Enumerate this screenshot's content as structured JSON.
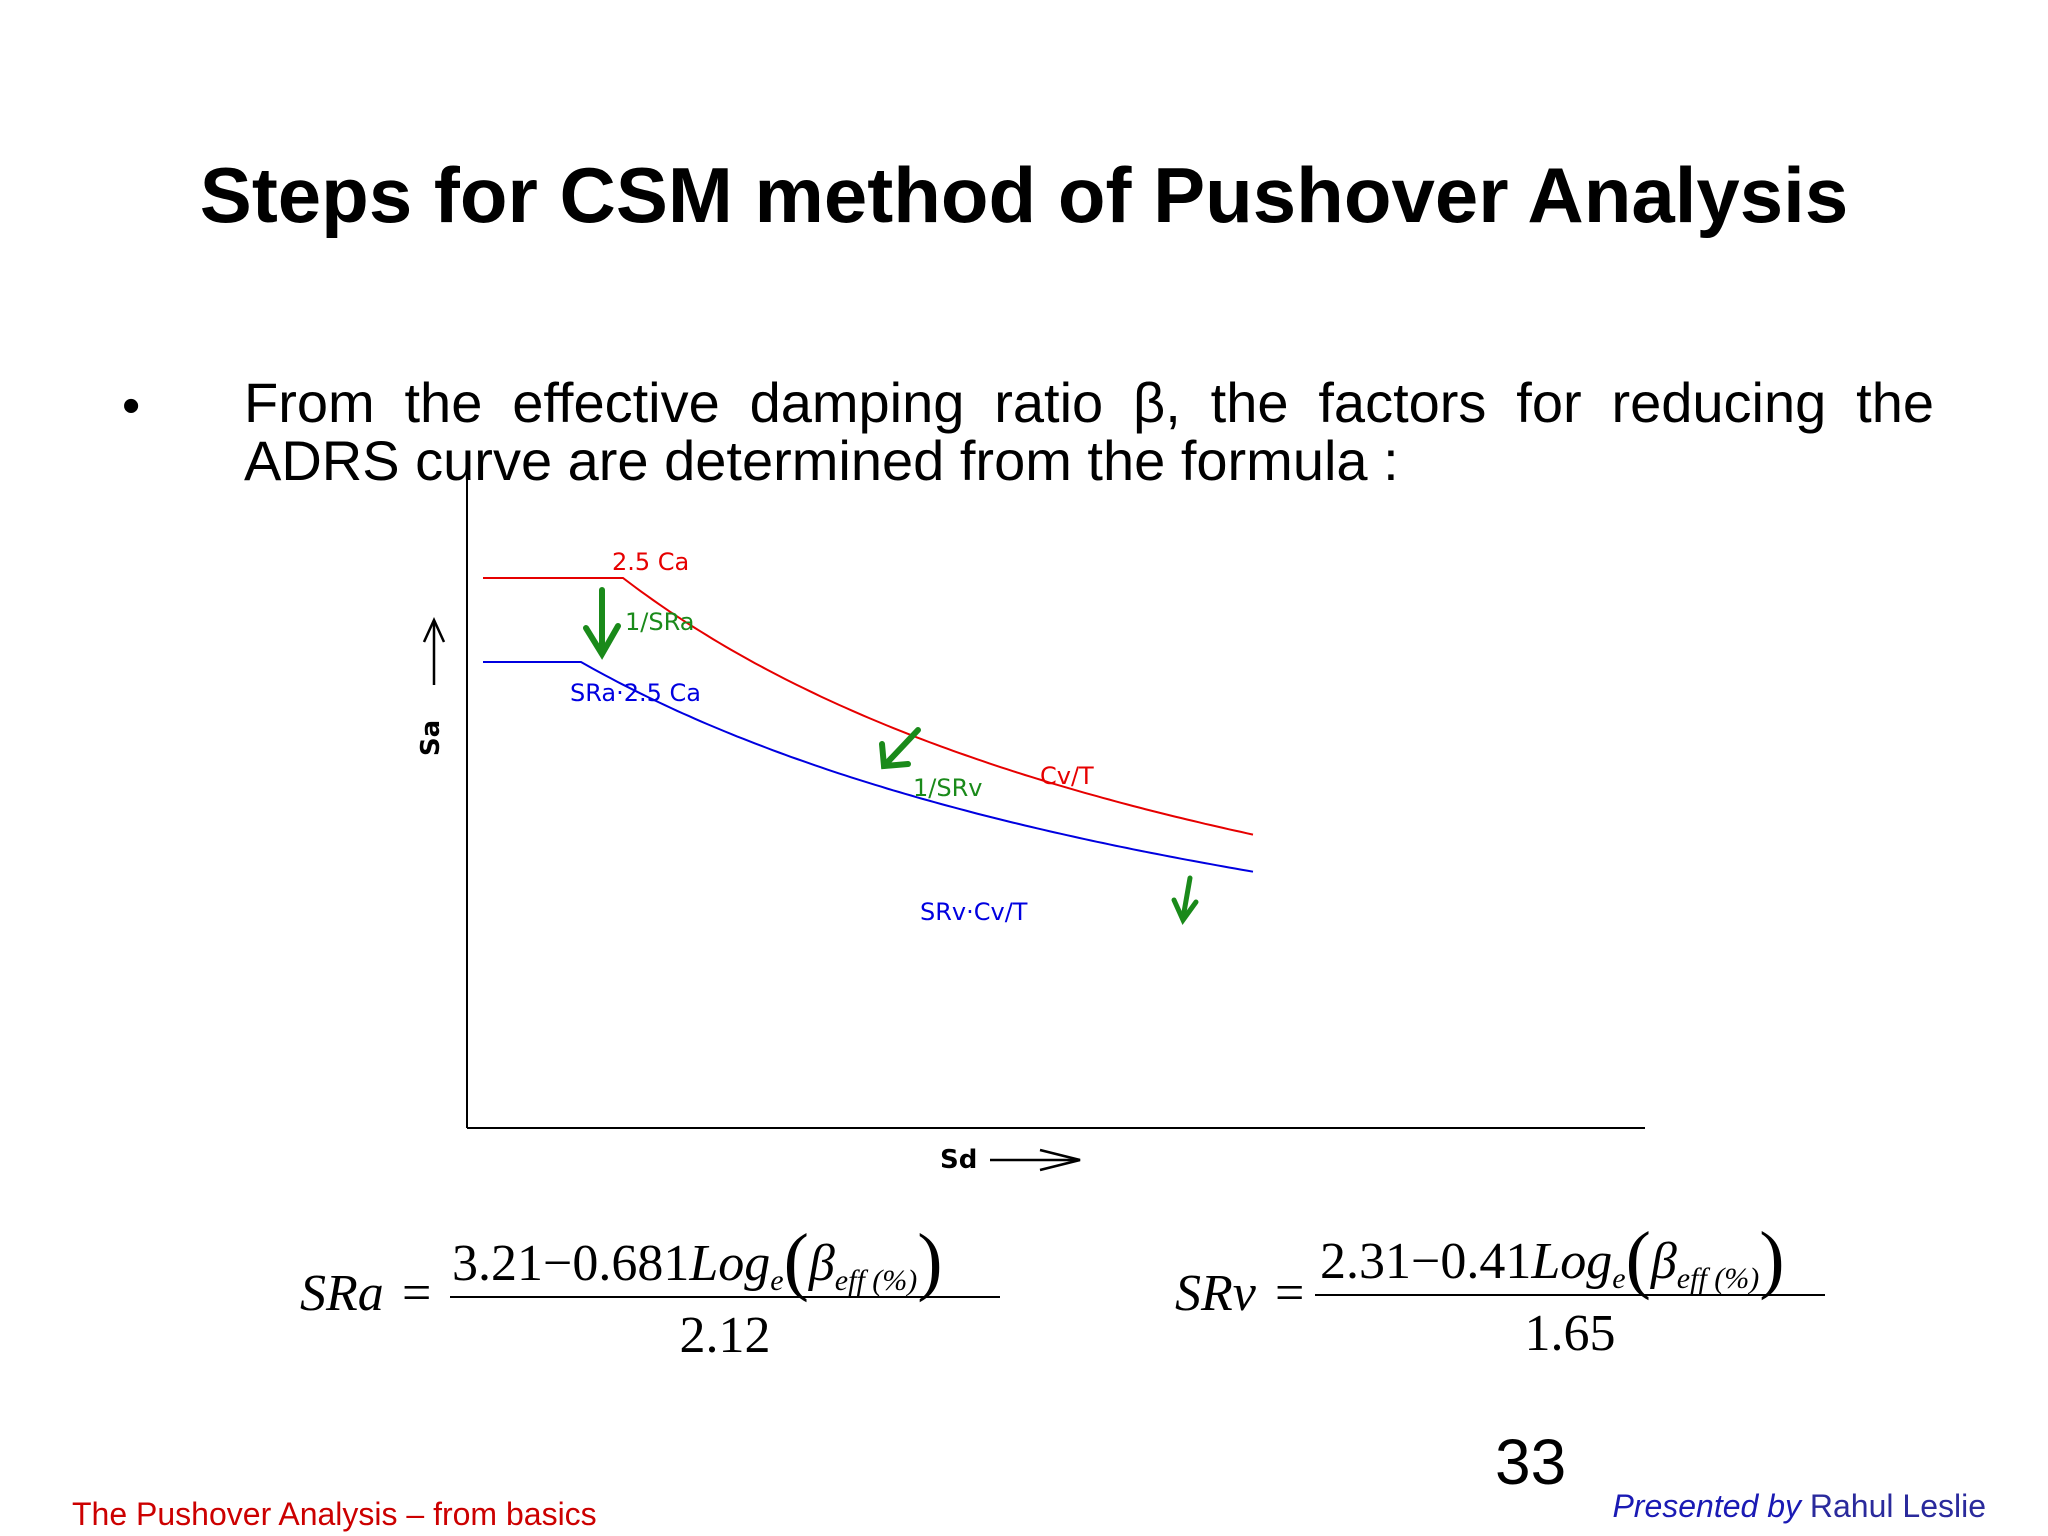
{
  "slide": {
    "title": "Steps for CSM method of Pushover Analysis",
    "bullet_symbol": "•",
    "bullet_line1": "From the effective damping ratio β, the factors for reducing the",
    "bullet_line2": "ADRS curve are determined from the formula :",
    "page_number": "33"
  },
  "chart_data": {
    "type": "line",
    "xlabel": "Sd",
    "ylabel": "Sa",
    "series": [
      {
        "name": "2.5 Ca",
        "color": "#e60000"
      },
      {
        "name": "SRa·2.5 Ca",
        "color": "#0000e0"
      }
    ],
    "annotations": {
      "red_plateau": "2.5 Ca",
      "factor_a": "1/SRa",
      "blue_plateau": "SRa·2.5 Ca",
      "factor_v": "1/SRv",
      "red_curve": "Cv/T",
      "blue_curve": "SRv·Cv/T"
    },
    "colors": {
      "red": "#e60000",
      "blue": "#0000e0",
      "arrow": "#1a8a1a"
    }
  },
  "formulas": {
    "sra": {
      "lhs": "SRa",
      "eq": "=",
      "num_const": "3.21",
      "minus": "−",
      "num_coef": "0.681",
      "log": "Log",
      "log_sub": "e",
      "beta": "β",
      "beta_sub": "eff (%)",
      "den": "2.12"
    },
    "srv": {
      "lhs": "SRv",
      "eq": "=",
      "num_const": "2.31",
      "minus": "−",
      "num_coef": "0.41",
      "log": "Log",
      "log_sub": "e",
      "beta": "β",
      "beta_sub": "eff (%)",
      "den": "1.65"
    }
  },
  "footer": {
    "left": "The Pushover Analysis – from basics",
    "right_prefix": "Presented by",
    "right_name": "Rahul Leslie"
  }
}
